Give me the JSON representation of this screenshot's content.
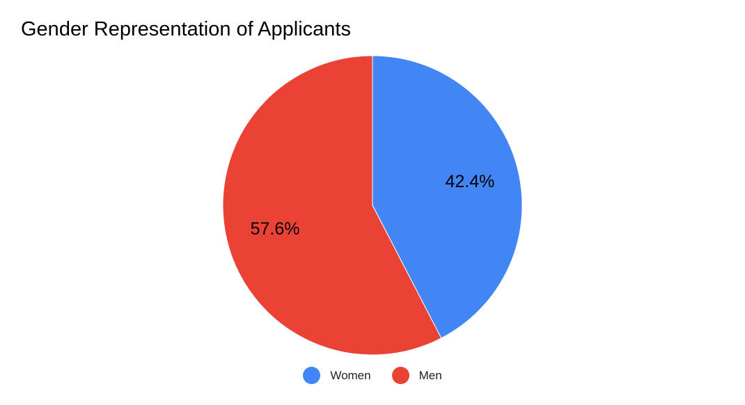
{
  "chart_data": {
    "type": "pie",
    "title": "Gender Representation of Applicants",
    "categories": [
      "Women",
      "Men"
    ],
    "values": [
      42.4,
      57.6
    ],
    "labels": [
      "42.4%",
      "57.6%"
    ],
    "colors": [
      "#4285f4",
      "#ea4335"
    ],
    "legend": "bottom",
    "start_angle": "12 o'clock, clockwise"
  }
}
